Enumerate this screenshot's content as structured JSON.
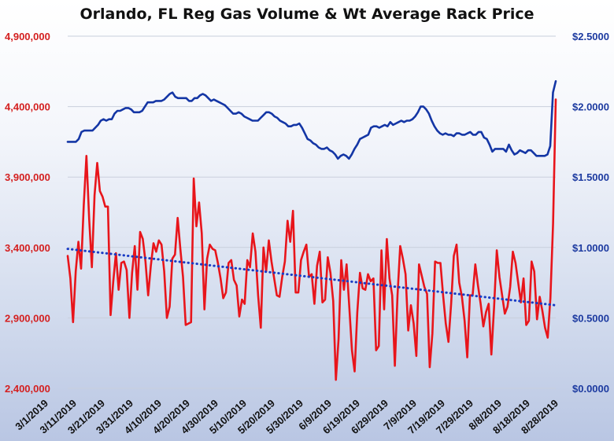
{
  "chart_data": {
    "type": "line",
    "title": "Orlando, FL Reg Gas Volume & Wt Average Rack Price",
    "x_tick_labels": [
      "3/1/2019",
      "3/11/2019",
      "3/21/2019",
      "3/31/2019",
      "4/10/2019",
      "4/20/2019",
      "4/30/2019",
      "5/10/2019",
      "5/20/2019",
      "5/30/2019",
      "6/9/2019",
      "6/19/2019",
      "6/29/2019",
      "7/9/2019",
      "7/19/2019",
      "7/29/2019",
      "8/8/2019",
      "8/18/2019",
      "8/28/2019"
    ],
    "x_start_date": "2019-03-01",
    "x_end_date": "2019-08-31",
    "y_left": {
      "min": 2400000,
      "max": 4900000,
      "ticks": [
        2400000,
        2900000,
        3400000,
        3900000,
        4400000,
        4900000
      ],
      "tick_labels": [
        "2,400,000",
        "2,900,000",
        "3,400,000",
        "3,900,000",
        "4,400,000",
        "4,900,000"
      ]
    },
    "y_right": {
      "min": 0,
      "max": 2.5,
      "ticks": [
        0,
        0.5,
        1.0,
        1.5,
        2.0,
        2.5
      ],
      "tick_labels": [
        "$0.0000",
        "$0.5000",
        "$1.0000",
        "$1.5000",
        "$2.0000",
        "$2.5000"
      ]
    },
    "grid": true,
    "series": [
      {
        "role": "volume",
        "axis": "left",
        "color": "#e8151b",
        "values": [
          3340000,
          3180000,
          2870000,
          3230000,
          3440000,
          3250000,
          3700000,
          4050000,
          3600000,
          3260000,
          3770000,
          4000000,
          3800000,
          3760000,
          3690000,
          3690000,
          2920000,
          3160000,
          3360000,
          3100000,
          3290000,
          3300000,
          3240000,
          2900000,
          3220000,
          3410000,
          3100000,
          3510000,
          3460000,
          3300000,
          3060000,
          3270000,
          3430000,
          3370000,
          3450000,
          3420000,
          3230000,
          2900000,
          2980000,
          3320000,
          3350000,
          3610000,
          3390000,
          3190000,
          2850000,
          2860000,
          2870000,
          3890000,
          3550000,
          3720000,
          3500000,
          2960000,
          3320000,
          3420000,
          3390000,
          3380000,
          3290000,
          3180000,
          3040000,
          3080000,
          3290000,
          3310000,
          3170000,
          3130000,
          2910000,
          3030000,
          3000000,
          3310000,
          3260000,
          3500000,
          3370000,
          3060000,
          2830000,
          3400000,
          3230000,
          3450000,
          3300000,
          3180000,
          3060000,
          3050000,
          3190000,
          3300000,
          3590000,
          3440000,
          3660000,
          3080000,
          3080000,
          3310000,
          3370000,
          3420000,
          3190000,
          3210000,
          3000000,
          3270000,
          3370000,
          3010000,
          3030000,
          3330000,
          3220000,
          3020000,
          2460000,
          2750000,
          3310000,
          3100000,
          3280000,
          2980000,
          2670000,
          2520000,
          2940000,
          3220000,
          3110000,
          3100000,
          3210000,
          3160000,
          3180000,
          2670000,
          2700000,
          3380000,
          2960000,
          3460000,
          3180000,
          3060000,
          2560000,
          3060000,
          3410000,
          3320000,
          3210000,
          2810000,
          2990000,
          2860000,
          2630000,
          3280000,
          3200000,
          3120000,
          3070000,
          2550000,
          2790000,
          3300000,
          3290000,
          3290000,
          3060000,
          2860000,
          2730000,
          3000000,
          3340000,
          3420000,
          3150000,
          3050000,
          2880000,
          2620000,
          3060000,
          3060000,
          3280000,
          3130000,
          3000000,
          2840000,
          2940000,
          3000000,
          2640000,
          2970000,
          3380000,
          3190000,
          3060000,
          2930000,
          2980000,
          3120000,
          3370000,
          3290000,
          3150000,
          3010000,
          3180000,
          2850000,
          2880000,
          3300000,
          3230000,
          2890000,
          3050000,
          2950000,
          2830000,
          2760000,
          3040000,
          3570000,
          4450000
        ]
      },
      {
        "role": "rack price",
        "axis": "right",
        "color": "#1436a5",
        "values": [
          1.75,
          1.75,
          1.75,
          1.75,
          1.77,
          1.82,
          1.83,
          1.83,
          1.83,
          1.83,
          1.85,
          1.87,
          1.9,
          1.91,
          1.9,
          1.91,
          1.91,
          1.95,
          1.97,
          1.97,
          1.98,
          1.99,
          1.99,
          1.98,
          1.96,
          1.96,
          1.96,
          1.97,
          2.0,
          2.03,
          2.03,
          2.03,
          2.04,
          2.04,
          2.04,
          2.05,
          2.07,
          2.09,
          2.1,
          2.07,
          2.06,
          2.06,
          2.06,
          2.06,
          2.04,
          2.04,
          2.06,
          2.06,
          2.08,
          2.09,
          2.08,
          2.06,
          2.04,
          2.05,
          2.04,
          2.03,
          2.02,
          2.01,
          1.99,
          1.97,
          1.95,
          1.95,
          1.96,
          1.95,
          1.93,
          1.92,
          1.91,
          1.9,
          1.9,
          1.9,
          1.92,
          1.94,
          1.96,
          1.96,
          1.95,
          1.93,
          1.92,
          1.9,
          1.89,
          1.88,
          1.86,
          1.86,
          1.87,
          1.87,
          1.88,
          1.85,
          1.81,
          1.77,
          1.76,
          1.74,
          1.73,
          1.71,
          1.7,
          1.7,
          1.71,
          1.69,
          1.68,
          1.66,
          1.63,
          1.65,
          1.66,
          1.65,
          1.63,
          1.66,
          1.7,
          1.73,
          1.77,
          1.78,
          1.79,
          1.8,
          1.85,
          1.86,
          1.86,
          1.85,
          1.86,
          1.87,
          1.86,
          1.89,
          1.87,
          1.88,
          1.89,
          1.9,
          1.89,
          1.9,
          1.9,
          1.91,
          1.93,
          1.96,
          2.0,
          2.0,
          1.98,
          1.95,
          1.9,
          1.86,
          1.83,
          1.81,
          1.8,
          1.81,
          1.8,
          1.8,
          1.79,
          1.81,
          1.81,
          1.8,
          1.8,
          1.81,
          1.82,
          1.8,
          1.8,
          1.82,
          1.82,
          1.78,
          1.77,
          1.73,
          1.68,
          1.7,
          1.7,
          1.7,
          1.7,
          1.68,
          1.73,
          1.69,
          1.66,
          1.67,
          1.69,
          1.68,
          1.67,
          1.69,
          1.69,
          1.67,
          1.65,
          1.65,
          1.65,
          1.65,
          1.66,
          1.72,
          2.1,
          2.18
        ]
      },
      {
        "role": "volume trend",
        "axis": "left",
        "color": "#1a3bc4",
        "style": "dotted",
        "values": [
          3390000,
          2990000
        ]
      }
    ]
  }
}
